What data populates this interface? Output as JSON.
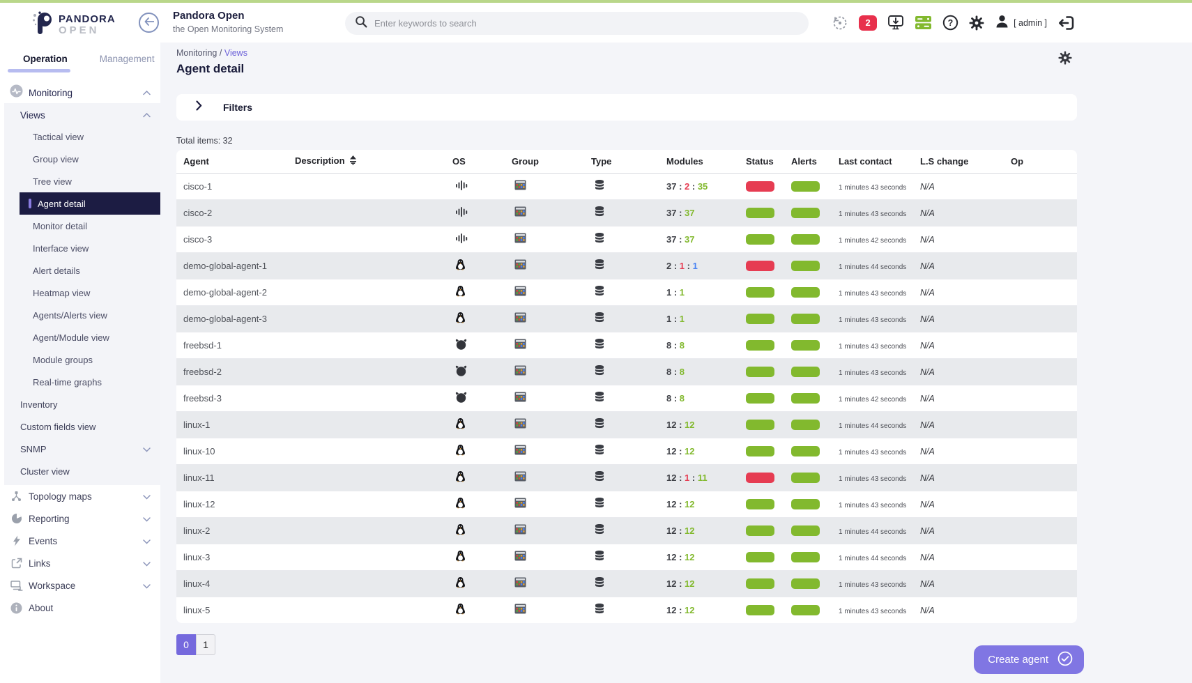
{
  "colors": {
    "accent_indigo": "#7569dd",
    "status_green": "#82b92e",
    "status_red": "#e63c52",
    "module_blue": "#4a83f3",
    "sidebar_active_bg": "#1c1c43",
    "notification_red": "#e8304c"
  },
  "topbar": {
    "logo_line1": "PANDORA",
    "logo_line2": "OPEN",
    "title": "Pandora Open",
    "subtitle": "the Open Monitoring System",
    "search_placeholder": "Enter keywords to search",
    "notification_badge": "2",
    "user_label": "[ admin ]"
  },
  "sidebar": {
    "tabs": [
      {
        "label": "Operation",
        "active": true
      },
      {
        "label": "Management",
        "active": false
      }
    ],
    "monitoring_label": "Monitoring",
    "views_label": "Views",
    "views_items": [
      "Tactical view",
      "Group view",
      "Tree view",
      "Agent detail",
      "Monitor detail",
      "Interface view",
      "Alert details",
      "Heatmap view",
      "Agents/Alerts view",
      "Agent/Module view",
      "Module groups",
      "Real-time graphs"
    ],
    "active_view_item": "Agent detail",
    "monitoring_items": [
      {
        "label": "Inventory",
        "expandable": false
      },
      {
        "label": "Custom fields view",
        "expandable": false
      },
      {
        "label": "SNMP",
        "expandable": true
      },
      {
        "label": "Cluster view",
        "expandable": false
      }
    ],
    "bottom_items": [
      {
        "label": "Topology maps",
        "icon": "topology-icon",
        "expandable": true
      },
      {
        "label": "Reporting",
        "icon": "reporting-icon",
        "expandable": true
      },
      {
        "label": "Events",
        "icon": "events-icon",
        "expandable": true
      },
      {
        "label": "Links",
        "icon": "links-icon",
        "expandable": true
      },
      {
        "label": "Workspace",
        "icon": "workspace-icon",
        "expandable": true
      },
      {
        "label": "About",
        "icon": "about-icon",
        "expandable": false
      }
    ]
  },
  "page": {
    "breadcrumb_section": "Monitoring",
    "breadcrumb_separator": "/",
    "breadcrumb_current": "Views",
    "title": "Agent detail",
    "filters_label": "Filters",
    "total_items": "Total items: 32"
  },
  "table": {
    "columns": [
      "Agent",
      "Description",
      "OS",
      "Group",
      "Type",
      "Modules",
      "Status",
      "Alerts",
      "Last contact",
      "L.S change",
      "Op"
    ],
    "sorted_column": "Description",
    "rows": [
      {
        "agent": "cisco-1",
        "os": "cisco",
        "modules": [
          [
            "37",
            "dark"
          ],
          [
            "2",
            "red"
          ],
          [
            "35",
            "green"
          ]
        ],
        "status": "red",
        "alerts": "green",
        "last_contact": "1 minutes 43 seconds",
        "ls_change": "N/A"
      },
      {
        "agent": "cisco-2",
        "os": "cisco",
        "modules": [
          [
            "37",
            "dark"
          ],
          [
            "37",
            "green"
          ]
        ],
        "status": "green",
        "alerts": "green",
        "last_contact": "1 minutes 43 seconds",
        "ls_change": "N/A"
      },
      {
        "agent": "cisco-3",
        "os": "cisco",
        "modules": [
          [
            "37",
            "dark"
          ],
          [
            "37",
            "green"
          ]
        ],
        "status": "green",
        "alerts": "green",
        "last_contact": "1 minutes 42 seconds",
        "ls_change": "N/A"
      },
      {
        "agent": "demo-global-agent-1",
        "os": "linux",
        "modules": [
          [
            "2",
            "dark"
          ],
          [
            "1",
            "red"
          ],
          [
            "1",
            "blue"
          ]
        ],
        "status": "red",
        "alerts": "green",
        "last_contact": "1 minutes 44 seconds",
        "ls_change": "N/A"
      },
      {
        "agent": "demo-global-agent-2",
        "os": "linux",
        "modules": [
          [
            "1",
            "dark"
          ],
          [
            "1",
            "green"
          ]
        ],
        "status": "green",
        "alerts": "green",
        "last_contact": "1 minutes 43 seconds",
        "ls_change": "N/A"
      },
      {
        "agent": "demo-global-agent-3",
        "os": "linux",
        "modules": [
          [
            "1",
            "dark"
          ],
          [
            "1",
            "green"
          ]
        ],
        "status": "green",
        "alerts": "green",
        "last_contact": "1 minutes 43 seconds",
        "ls_change": "N/A"
      },
      {
        "agent": "freebsd-1",
        "os": "freebsd",
        "modules": [
          [
            "8",
            "dark"
          ],
          [
            "8",
            "green"
          ]
        ],
        "status": "green",
        "alerts": "green",
        "last_contact": "1 minutes 43 seconds",
        "ls_change": "N/A"
      },
      {
        "agent": "freebsd-2",
        "os": "freebsd",
        "modules": [
          [
            "8",
            "dark"
          ],
          [
            "8",
            "green"
          ]
        ],
        "status": "green",
        "alerts": "green",
        "last_contact": "1 minutes 43 seconds",
        "ls_change": "N/A"
      },
      {
        "agent": "freebsd-3",
        "os": "freebsd",
        "modules": [
          [
            "8",
            "dark"
          ],
          [
            "8",
            "green"
          ]
        ],
        "status": "green",
        "alerts": "green",
        "last_contact": "1 minutes 42 seconds",
        "ls_change": "N/A"
      },
      {
        "agent": "linux-1",
        "os": "linux",
        "modules": [
          [
            "12",
            "dark"
          ],
          [
            "12",
            "green"
          ]
        ],
        "status": "green",
        "alerts": "green",
        "last_contact": "1 minutes 44 seconds",
        "ls_change": "N/A"
      },
      {
        "agent": "linux-10",
        "os": "linux",
        "modules": [
          [
            "12",
            "dark"
          ],
          [
            "12",
            "green"
          ]
        ],
        "status": "green",
        "alerts": "green",
        "last_contact": "1 minutes 43 seconds",
        "ls_change": "N/A"
      },
      {
        "agent": "linux-11",
        "os": "linux",
        "modules": [
          [
            "12",
            "dark"
          ],
          [
            "1",
            "red"
          ],
          [
            "11",
            "green"
          ]
        ],
        "status": "red",
        "alerts": "green",
        "last_contact": "1 minutes 43 seconds",
        "ls_change": "N/A"
      },
      {
        "agent": "linux-12",
        "os": "linux",
        "modules": [
          [
            "12",
            "dark"
          ],
          [
            "12",
            "green"
          ]
        ],
        "status": "green",
        "alerts": "green",
        "last_contact": "1 minutes 43 seconds",
        "ls_change": "N/A"
      },
      {
        "agent": "linux-2",
        "os": "linux",
        "modules": [
          [
            "12",
            "dark"
          ],
          [
            "12",
            "green"
          ]
        ],
        "status": "green",
        "alerts": "green",
        "last_contact": "1 minutes 44 seconds",
        "ls_change": "N/A"
      },
      {
        "agent": "linux-3",
        "os": "linux",
        "modules": [
          [
            "12",
            "dark"
          ],
          [
            "12",
            "green"
          ]
        ],
        "status": "green",
        "alerts": "green",
        "last_contact": "1 minutes 44 seconds",
        "ls_change": "N/A"
      },
      {
        "agent": "linux-4",
        "os": "linux",
        "modules": [
          [
            "12",
            "dark"
          ],
          [
            "12",
            "green"
          ]
        ],
        "status": "green",
        "alerts": "green",
        "last_contact": "1 minutes 43 seconds",
        "ls_change": "N/A"
      },
      {
        "agent": "linux-5",
        "os": "linux",
        "modules": [
          [
            "12",
            "dark"
          ],
          [
            "12",
            "green"
          ]
        ],
        "status": "green",
        "alerts": "green",
        "last_contact": "1 minutes 43 seconds",
        "ls_change": "N/A"
      }
    ]
  },
  "pagination": {
    "pages": [
      "0",
      "1"
    ],
    "active_page": "0"
  },
  "footer": {
    "create_agent_label": "Create agent"
  }
}
